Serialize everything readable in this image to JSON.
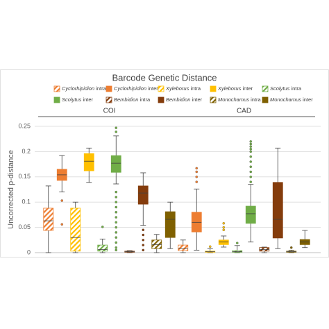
{
  "chart_data": {
    "type": "box",
    "title": "Barcode Genetic Distance",
    "ylabel": "Uncorrected p-distance",
    "groups": [
      "COI",
      "CAD"
    ],
    "ylim": [
      0,
      0.25
    ],
    "yticks": [
      0,
      0.05,
      0.1,
      0.15,
      0.2,
      0.25
    ],
    "grid": true,
    "series": [
      {
        "name": "Cyclorhipidion intra",
        "color": "#ed7d31",
        "hatched": true,
        "boxes": [
          {
            "min": 0,
            "q1": 0.044,
            "median": 0.063,
            "q3": 0.088,
            "max": 0.132,
            "outliers": []
          },
          {
            "min": 0,
            "q1": 0.004,
            "median": 0.008,
            "q3": 0.015,
            "max": 0.025,
            "outliers": []
          }
        ]
      },
      {
        "name": "Cyclorhipidion inter",
        "color": "#ed7d31",
        "hatched": false,
        "boxes": [
          {
            "min": 0.12,
            "q1": 0.143,
            "median": 0.154,
            "q3": 0.165,
            "max": 0.192,
            "outliers": [
              0.103,
              0.056
            ]
          },
          {
            "min": 0.005,
            "q1": 0.041,
            "median": 0.06,
            "q3": 0.08,
            "max": 0.126,
            "outliers": [
              0.167,
              0.16,
              0.15,
              0.14
            ]
          }
        ]
      },
      {
        "name": "Xyleborus intra",
        "color": "#ffc000",
        "hatched": true,
        "boxes": [
          {
            "min": 0,
            "q1": 0.003,
            "median": 0.03,
            "q3": 0.088,
            "max": 0.1,
            "outliers": []
          },
          {
            "min": 0,
            "q1": 0.001,
            "median": 0.002,
            "q3": 0.003,
            "max": 0.008,
            "outliers": [
              0.012
            ]
          }
        ]
      },
      {
        "name": "Xyleborus inter",
        "color": "#ffc000",
        "hatched": false,
        "boxes": [
          {
            "min": 0.139,
            "q1": 0.162,
            "median": 0.181,
            "q3": 0.196,
            "max": 0.207,
            "outliers": []
          },
          {
            "min": 0.011,
            "q1": 0.016,
            "median": 0.021,
            "q3": 0.025,
            "max": 0.033,
            "outliers": [
              0.058,
              0.05,
              0.045
            ]
          }
        ]
      },
      {
        "name": "Scolytus intra",
        "color": "#70ad47",
        "hatched": true,
        "boxes": [
          {
            "min": 0,
            "q1": 0.003,
            "median": 0.006,
            "q3": 0.015,
            "max": 0.027,
            "outliers": [
              0.051
            ]
          },
          {
            "min": 0,
            "q1": 0.001,
            "median": 0.002,
            "q3": 0.004,
            "max": 0.014,
            "outliers": [
              0.019
            ]
          }
        ]
      },
      {
        "name": "Scolytus inter",
        "color": "#70ad47",
        "hatched": false,
        "boxes": [
          {
            "min": 0.136,
            "q1": 0.159,
            "median": 0.177,
            "q3": 0.192,
            "max": 0.231,
            "outliers": [
              0.247,
              0.239,
              0.12,
              0.11,
              0.1,
              0.09,
              0.08,
              0.07,
              0.06,
              0.05,
              0.04,
              0.03,
              0.02,
              0.01,
              0.005
            ]
          },
          {
            "min": 0.021,
            "q1": 0.058,
            "median": 0.077,
            "q3": 0.092,
            "max": 0.135,
            "outliers": [
              0.22,
              0.215,
              0.21,
              0.205,
              0.2,
              0.19,
              0.18,
              0.17,
              0.16,
              0.15,
              0.14
            ]
          }
        ]
      },
      {
        "name": "Bembidion intra",
        "color": "#843c0c",
        "hatched": true,
        "boxes": [
          {
            "min": 0,
            "q1": 0.001,
            "median": 0.002,
            "q3": 0.003,
            "max": 0.004,
            "outliers": []
          },
          {
            "min": 0,
            "q1": 0.003,
            "median": 0.006,
            "q3": 0.01,
            "max": 0.011,
            "outliers": []
          }
        ]
      },
      {
        "name": "Bembidion inter",
        "color": "#843c0c",
        "hatched": false,
        "boxes": [
          {
            "min": 0.054,
            "q1": 0.096,
            "median": 0.118,
            "q3": 0.132,
            "max": 0.158,
            "outliers": [
              0.045,
              0.035,
              0.025,
              0.015,
              0.005
            ]
          },
          {
            "min": 0.008,
            "q1": 0.029,
            "median": 0.066,
            "q3": 0.139,
            "max": 0.207,
            "outliers": []
          }
        ]
      },
      {
        "name": "Monochamus intra",
        "color": "#7f6000",
        "hatched": true,
        "boxes": [
          {
            "min": 0,
            "q1": 0.008,
            "median": 0.016,
            "q3": 0.025,
            "max": 0.036,
            "outliers": []
          },
          {
            "min": 0,
            "q1": 0.001,
            "median": 0.002,
            "q3": 0.003,
            "max": 0.005,
            "outliers": [
              0.01
            ]
          }
        ]
      },
      {
        "name": "Monochamus inter",
        "color": "#7f6000",
        "hatched": false,
        "boxes": [
          {
            "min": 0.008,
            "q1": 0.03,
            "median": 0.066,
            "q3": 0.081,
            "max": 0.1,
            "outliers": []
          },
          {
            "min": 0.01,
            "q1": 0.016,
            "median": 0.021,
            "q3": 0.026,
            "max": 0.044,
            "outliers": []
          }
        ]
      }
    ]
  }
}
